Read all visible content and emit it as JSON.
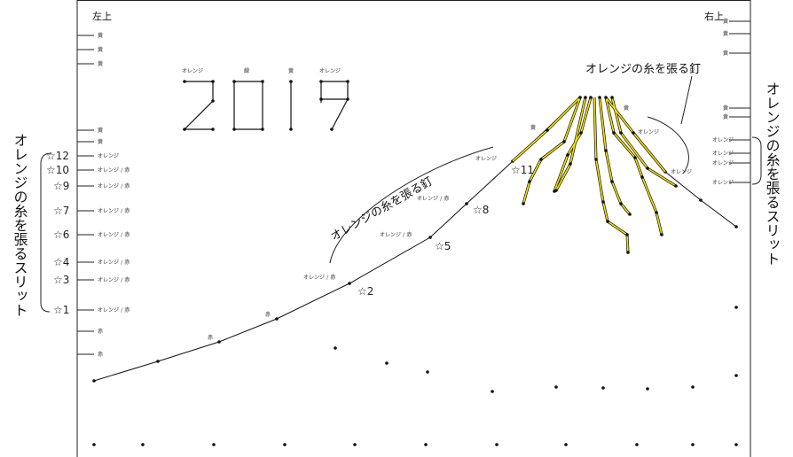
{
  "corners": {
    "left": "左上",
    "right": "右上"
  },
  "year": {
    "text": "2019",
    "digit_labels": [
      "オレンジ",
      "緑",
      "黄",
      "オレンジ"
    ]
  },
  "left_slit": {
    "caption": "オレンジの糸を張るスリット",
    "top_labels": [
      "黄",
      "黄",
      "黄"
    ],
    "mid_labels": [
      "黄",
      "黄"
    ],
    "rows": [
      {
        "star": "☆12",
        "label": "オレンジ"
      },
      {
        "star": "☆10",
        "label": "オレンジ / 赤"
      },
      {
        "star": "☆9",
        "label": "オレンジ / 赤"
      },
      {
        "star": "☆7",
        "label": "オレンジ / 赤"
      },
      {
        "star": "☆6",
        "label": "オレンジ / 赤"
      },
      {
        "star": "☆4",
        "label": "オレンジ / 赤"
      },
      {
        "star": "☆3",
        "label": "オレンジ / 赤"
      },
      {
        "star": "☆1",
        "label": "オレンジ / 赤"
      }
    ],
    "bottom_labels": [
      "赤",
      "赤"
    ]
  },
  "right_slit": {
    "caption": "オレンジの糸を張るスリット",
    "top_labels": [
      "黄",
      "黄",
      "黄"
    ],
    "mid_labels": [
      "黄",
      "黄"
    ],
    "orange_labels": [
      "オレンジ",
      "オレンジ",
      "オレンジ",
      "オレンジ"
    ]
  },
  "nail_captions": {
    "left": "オレンジの糸を張る釘",
    "right": "オレンジの糸を張る釘"
  },
  "mountain": {
    "stars": [
      "☆2",
      "☆5",
      "☆8",
      "☆11"
    ],
    "slope_labels": [
      "赤",
      "赤",
      "オレンジ / 赤",
      "オレンジ / 赤",
      "オレンジ / 赤",
      "オレンジ"
    ],
    "peak_labels": [
      "黄",
      "黄",
      "オレンジ",
      "オレンジ"
    ]
  },
  "colors": {
    "thread_yellow": "#f5e400",
    "line": "#111111",
    "label": "#777777"
  }
}
